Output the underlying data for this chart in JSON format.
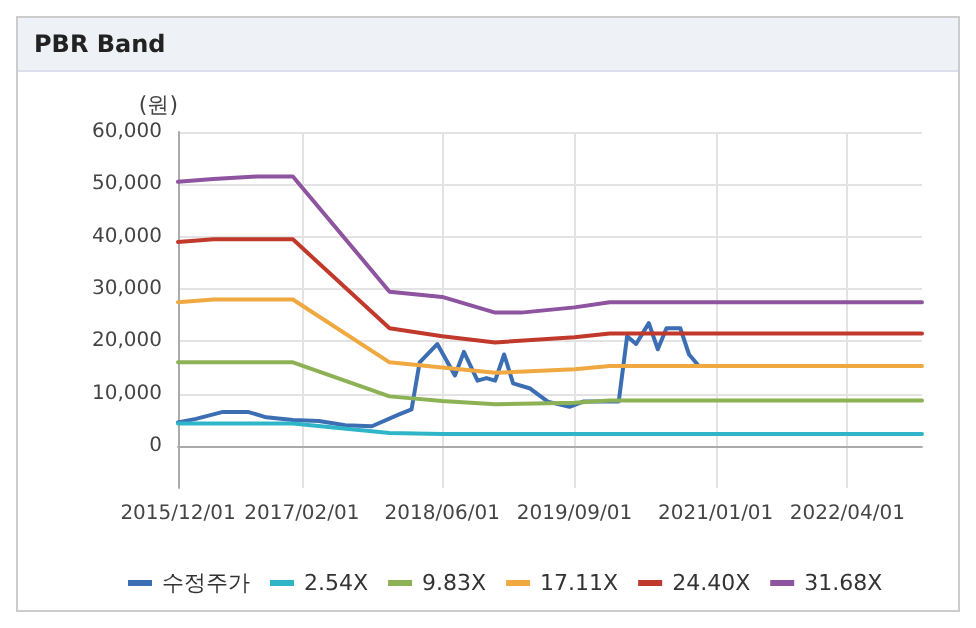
{
  "chart_data": {
    "type": "line",
    "title": "PBR Band",
    "ylabel": "(원)",
    "xlim": [
      "2015-12-01",
      "2022-12-15"
    ],
    "ylim": [
      -8000,
      60000
    ],
    "xticks": [
      {
        "value": "2015-12-01",
        "label": "2015/12/01"
      },
      {
        "value": "2017-02-01",
        "label": "2017/02/01"
      },
      {
        "value": "2018-06-01",
        "label": "2018/06/01"
      },
      {
        "value": "2019-09-01",
        "label": "2019/09/01"
      },
      {
        "value": "2021-01-01",
        "label": "2021/01/01"
      },
      {
        "value": "2022-04-01",
        "label": "2022/04/01"
      }
    ],
    "yticks": [
      {
        "value": 0,
        "label": "0"
      },
      {
        "value": 10000,
        "label": "10,000"
      },
      {
        "value": 20000,
        "label": "20,000"
      },
      {
        "value": 30000,
        "label": "30,000"
      },
      {
        "value": 40000,
        "label": "40,000"
      },
      {
        "value": 50000,
        "label": "50,000"
      },
      {
        "value": 60000,
        "label": "60,000"
      }
    ],
    "grid": true,
    "legend": "bottom",
    "marker": "none",
    "line_style": "solid",
    "series": [
      {
        "name": "수정주가",
        "color": "#3c6eb4",
        "x": [
          "2015-12-01",
          "2016-02-01",
          "2016-05-01",
          "2016-08-01",
          "2016-10-01",
          "2017-01-01",
          "2017-04-01",
          "2017-07-01",
          "2017-10-01",
          "2018-01-01",
          "2018-02-15",
          "2018-03-15",
          "2018-05-15",
          "2018-07-15",
          "2018-08-15",
          "2018-10-01",
          "2018-11-01",
          "2018-12-01",
          "2019-01-01",
          "2019-02-01",
          "2019-04-01",
          "2019-06-01",
          "2019-08-15",
          "2019-10-01",
          "2020-02-01",
          "2020-03-01",
          "2020-04-01",
          "2020-05-15",
          "2020-06-15",
          "2020-07-15",
          "2020-09-01",
          "2020-10-01",
          "2020-11-01"
        ],
        "values": [
          4500,
          5200,
          6500,
          6500,
          5500,
          5000,
          4800,
          4000,
          3800,
          6000,
          7000,
          16000,
          19500,
          13500,
          18000,
          12500,
          13000,
          12500,
          17500,
          12000,
          11000,
          8500,
          7500,
          8500,
          8500,
          21000,
          19500,
          23500,
          18500,
          22500,
          22500,
          17500,
          15500
        ]
      },
      {
        "name": "2.54X",
        "color": "#2fb5c8",
        "x": [
          "2015-12-01",
          "2017-01-01",
          "2017-12-01",
          "2018-06-01",
          "2022-12-15"
        ],
        "values": [
          4300,
          4300,
          2500,
          2300,
          2300
        ]
      },
      {
        "name": "9.83X",
        "color": "#8db255",
        "x": [
          "2015-12-01",
          "2017-01-01",
          "2017-12-01",
          "2018-06-01",
          "2018-12-01",
          "2019-09-01",
          "2020-01-01",
          "2022-12-15"
        ],
        "values": [
          16000,
          16000,
          9500,
          8600,
          8000,
          8300,
          8700,
          8700
        ]
      },
      {
        "name": "17.11X",
        "color": "#f0a841",
        "x": [
          "2015-12-01",
          "2016-04-01",
          "2017-01-01",
          "2017-12-01",
          "2018-06-01",
          "2018-12-01",
          "2019-09-01",
          "2020-01-01",
          "2022-12-15"
        ],
        "values": [
          27500,
          28000,
          28000,
          16000,
          15000,
          14000,
          14700,
          15300,
          15300
        ]
      },
      {
        "name": "24.40X",
        "color": "#c0392b",
        "x": [
          "2015-12-01",
          "2016-04-01",
          "2017-01-01",
          "2017-12-01",
          "2018-06-01",
          "2018-12-01",
          "2019-09-01",
          "2020-01-01",
          "2022-12-15"
        ],
        "values": [
          39000,
          39500,
          39500,
          22500,
          21000,
          19800,
          20800,
          21500,
          21500
        ]
      },
      {
        "name": "31.68X",
        "color": "#8e54a0",
        "x": [
          "2015-12-01",
          "2016-04-01",
          "2016-09-01",
          "2017-01-01",
          "2017-12-01",
          "2018-06-01",
          "2018-12-01",
          "2019-03-01",
          "2019-09-01",
          "2020-01-01",
          "2022-12-15"
        ],
        "values": [
          50500,
          51000,
          51500,
          51500,
          29500,
          28500,
          25500,
          25500,
          26500,
          27500,
          27500
        ]
      }
    ]
  }
}
